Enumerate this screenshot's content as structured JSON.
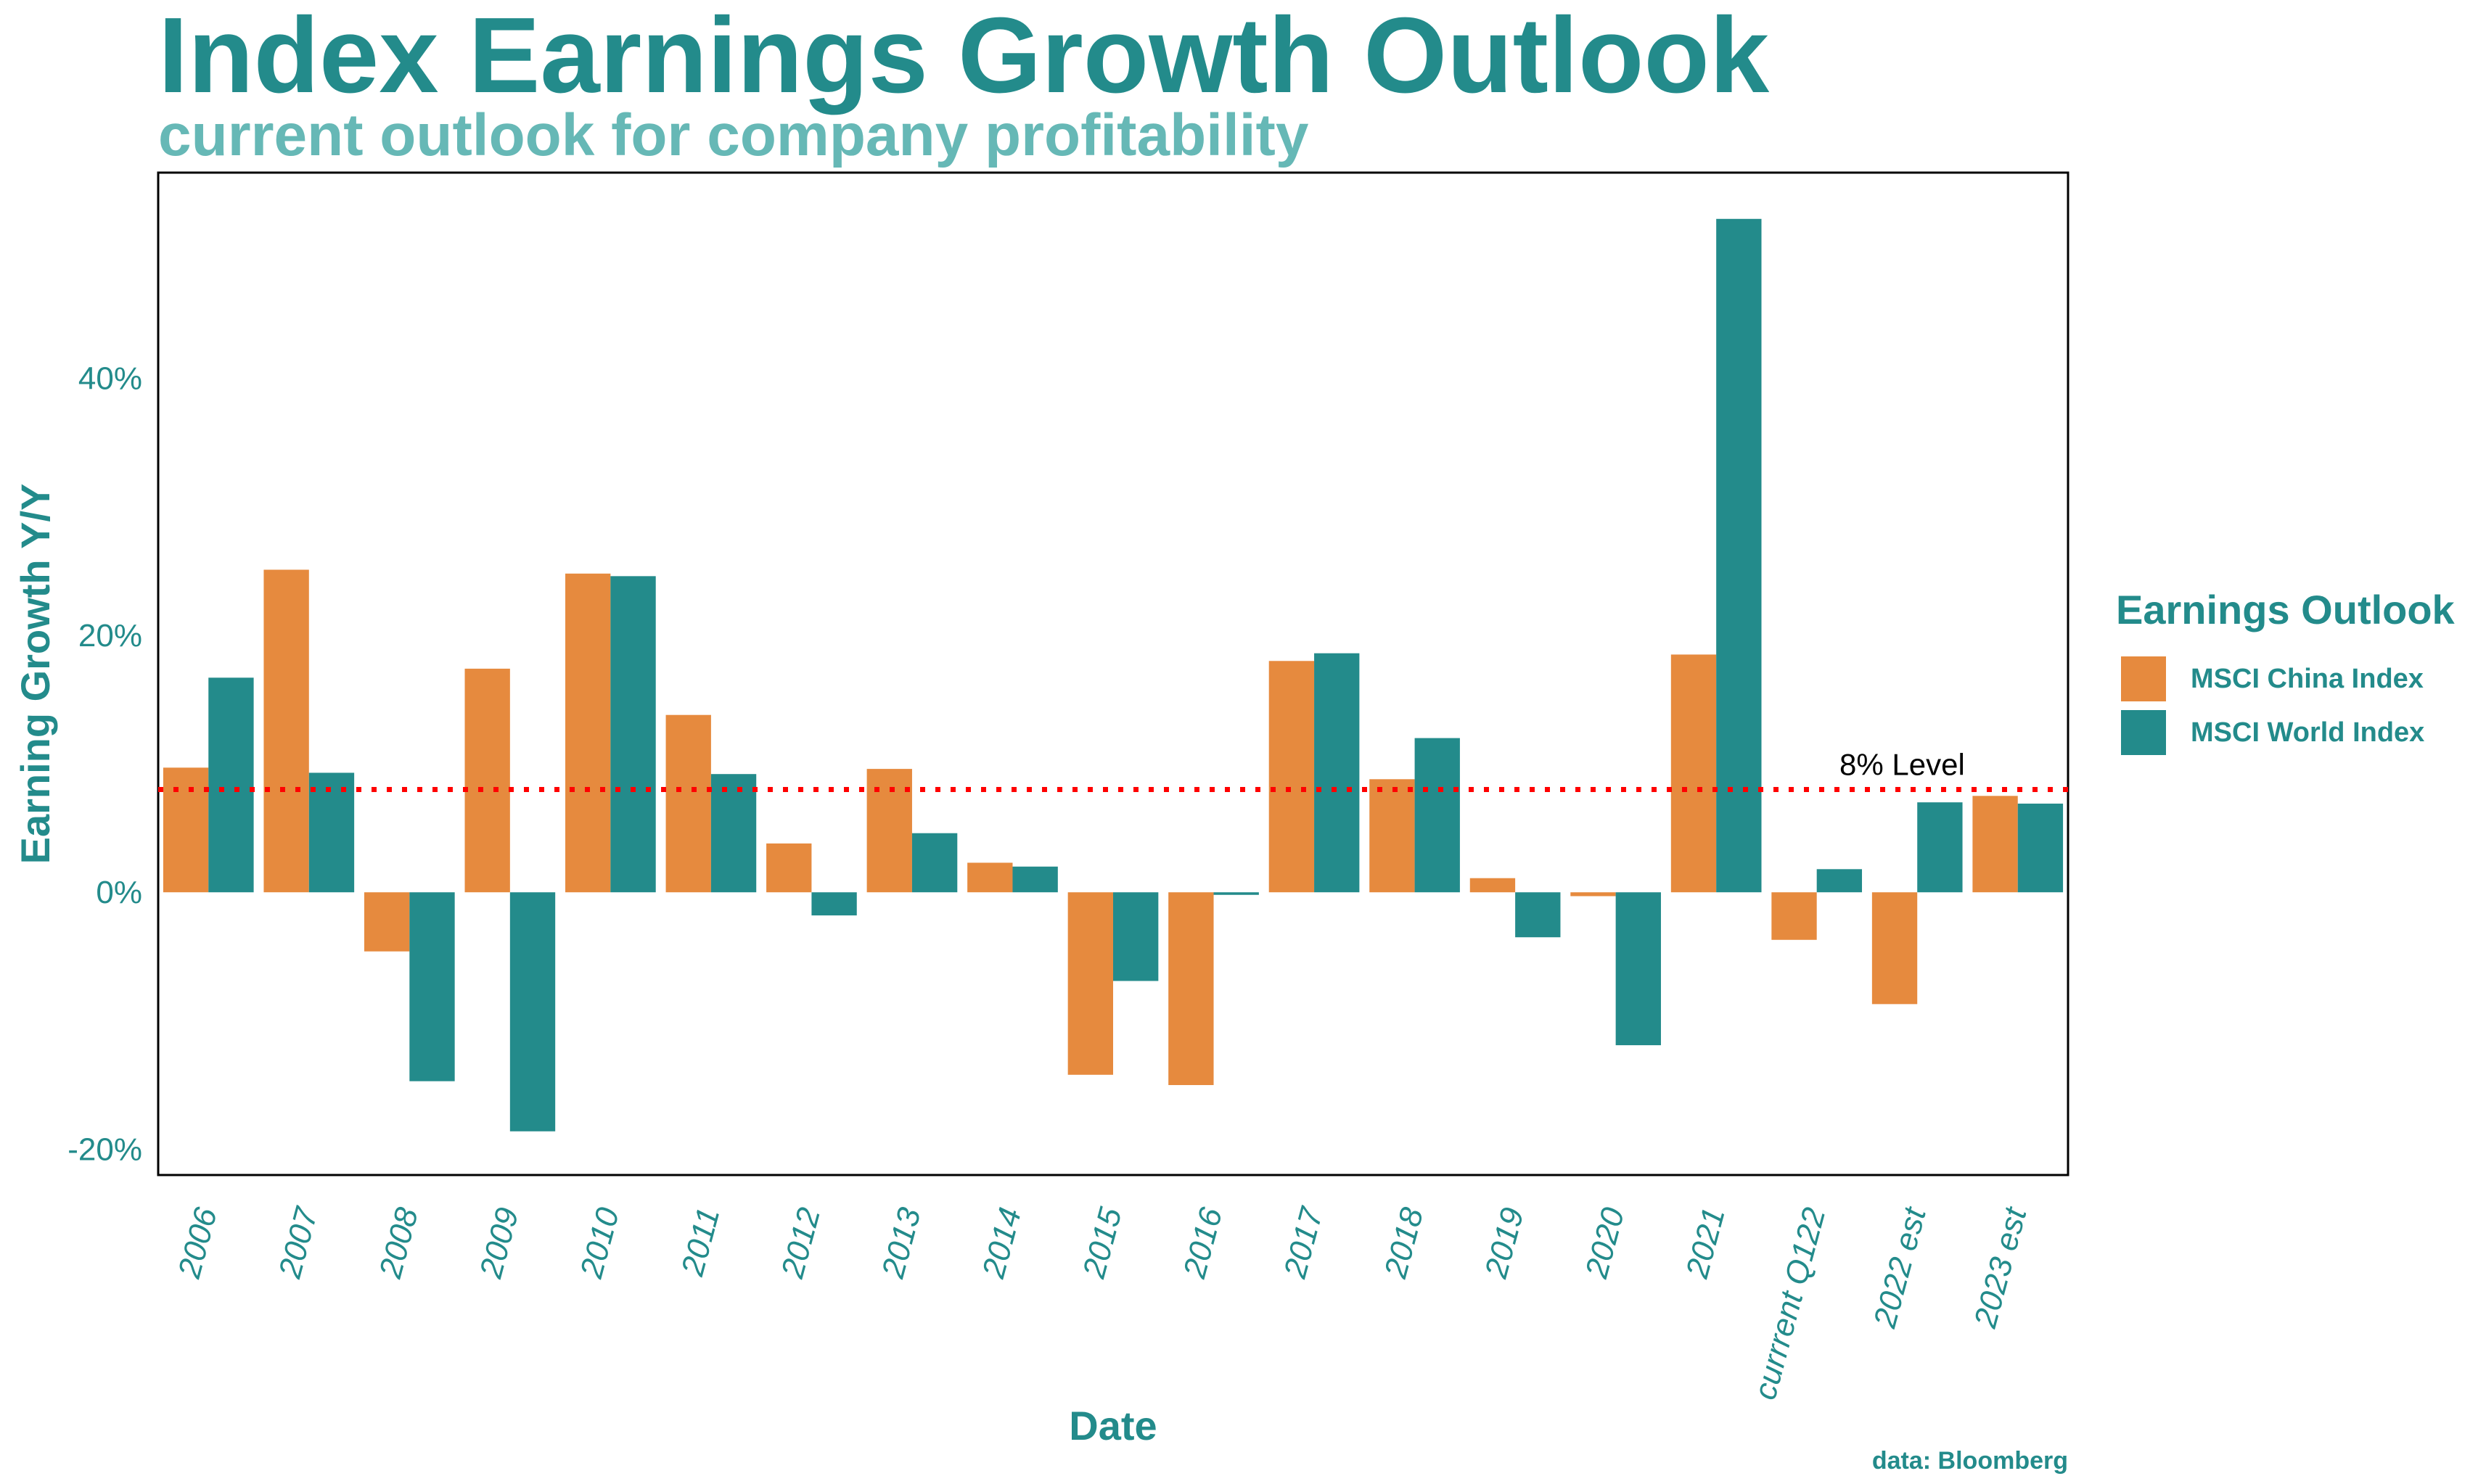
{
  "title": "Index Earnings Growth Outlook",
  "subtitle": "current outlook for company profitability",
  "caption": "data: Bloomberg",
  "colors": {
    "title": "#238b8b",
    "subtitle": "#66b8b6",
    "china": "#e68a3e",
    "world": "#238b8b",
    "reference_line": "#ff0000",
    "annotation": "#000000"
  },
  "chart_data": {
    "type": "bar",
    "xlabel": "Date",
    "ylabel": "Earning Growth Y/Y",
    "ylim": [
      -22,
      56
    ],
    "yticks": [
      -20,
      0,
      20,
      40
    ],
    "ytick_labels": [
      "-20%",
      "0%",
      "20%",
      "40%"
    ],
    "grid": false,
    "categories": [
      "2006",
      "2007",
      "2008",
      "2009",
      "2010",
      "2011",
      "2012",
      "2013",
      "2014",
      "2015",
      "2016",
      "2017",
      "2018",
      "2019",
      "2020",
      "2021",
      "currrent Q122",
      "2022 est",
      "2023 est"
    ],
    "series": [
      {
        "name": "MSCI China Index",
        "values": [
          9.7,
          25.1,
          -4.6,
          17.4,
          24.8,
          13.8,
          3.8,
          9.6,
          2.3,
          -14.2,
          -15.0,
          18.0,
          8.8,
          1.1,
          -0.3,
          18.5,
          -3.7,
          -8.7,
          7.5
        ]
      },
      {
        "name": "MSCI World Index",
        "values": [
          16.7,
          9.3,
          -14.7,
          -18.6,
          24.6,
          9.2,
          -1.8,
          4.6,
          2.0,
          -6.9,
          -0.2,
          18.6,
          12.0,
          -3.5,
          -11.9,
          52.4,
          1.8,
          7.0,
          6.9
        ]
      }
    ],
    "reference_line": {
      "value": 8,
      "label": "8% Level",
      "style": "dotted"
    },
    "legend": {
      "title": "Earnings Outlook",
      "placement": "right"
    }
  }
}
